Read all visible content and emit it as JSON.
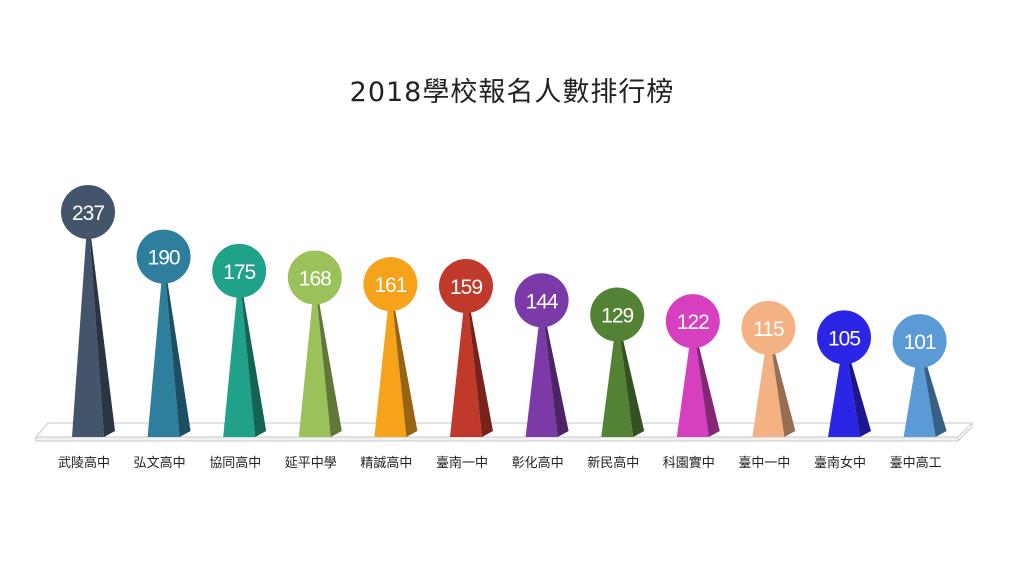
{
  "chart_data": {
    "type": "bar",
    "title": "2018學校報名人數排行榜",
    "xlabel": "",
    "ylabel": "",
    "ylim": [
      0,
      240
    ],
    "grid": false,
    "legend": "none",
    "categories": [
      "武陵高中",
      "弘文高中",
      "協同高中",
      "延平中學",
      "精誠高中",
      "臺南一中",
      "彰化高中",
      "新民高中",
      "科園實中",
      "臺中一中",
      "臺南女中",
      "臺中高工"
    ],
    "values": [
      237,
      190,
      175,
      168,
      161,
      159,
      144,
      129,
      122,
      115,
      105,
      101
    ],
    "colors": [
      "#44546a",
      "#2e7f9e",
      "#1fa289",
      "#9ac15a",
      "#f7a21b",
      "#c0392b",
      "#7b3aa8",
      "#548235",
      "#d63fc0",
      "#f4b183",
      "#2b25e6",
      "#5b9bd5"
    ]
  }
}
